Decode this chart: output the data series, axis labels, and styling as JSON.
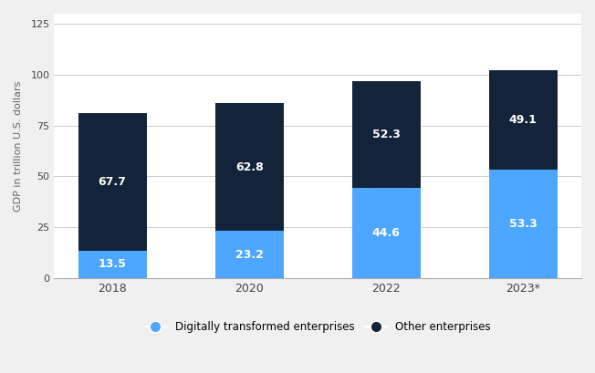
{
  "categories": [
    "2018",
    "2020",
    "2022",
    "2023*"
  ],
  "digitally_transformed": [
    13.5,
    23.2,
    44.6,
    53.3
  ],
  "other_enterprises": [
    67.7,
    62.8,
    52.3,
    49.1
  ],
  "color_digital": "#4da6ff",
  "color_other": "#12233a",
  "ylabel": "GDP in trillion U.S. dollars",
  "ylim": [
    0,
    130
  ],
  "yticks": [
    0,
    25,
    50,
    75,
    100,
    125
  ],
  "legend_digital": "Digitally transformed enterprises",
  "legend_other": "Other enterprises",
  "bar_width": 0.5,
  "background_color": "#f0f0f0",
  "plot_bg_color": "#ffffff",
  "text_color": "#ffffff",
  "label_fontsize": 9,
  "axis_label_fontsize": 8
}
